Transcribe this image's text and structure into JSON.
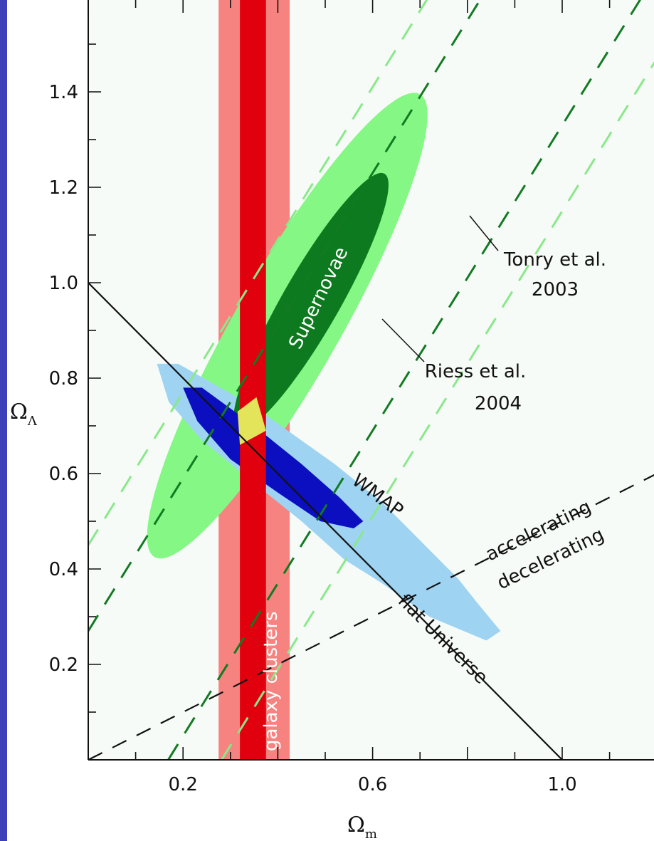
{
  "chart_data": {
    "type": "contour",
    "title": "",
    "xlabel": "Ωm",
    "xlabel_main": "Ω",
    "xlabel_sub": "m",
    "ylabel": "ΩΛ",
    "ylabel_main": "Ω",
    "ylabel_sub": "Λ",
    "xlim": [
      0.0,
      1.2
    ],
    "ylim": [
      0.0,
      1.6
    ],
    "x_ticks": [
      "0.2",
      "0.6",
      "1.0"
    ],
    "y_ticks": [
      "0.2",
      "0.4",
      "0.6",
      "0.8",
      "1.0",
      "1.2",
      "1.4"
    ],
    "colors": {
      "supernovae_outer": "#85f785",
      "supernovae_inner": "#0e7a1f",
      "wmap_outer": "#9ed4f2",
      "wmap_inner": "#0b0fc0",
      "clusters_outer": "#f6837f",
      "clusters_inner": "#e0000e",
      "overlap": "#e4e45a",
      "tonry_dash": "#8ae88a",
      "riess_dash": "#127a22"
    },
    "regions": [
      {
        "name": "Supernovae",
        "label": "Supernovae",
        "type": "ellipse",
        "center": [
          0.42,
          0.91
        ],
        "semi_major": 0.56,
        "semi_minor": 0.11,
        "angle_deg": 60
      },
      {
        "name": "Supernovae-inner",
        "type": "ellipse",
        "center": [
          0.47,
          0.96
        ],
        "semi_major": 0.31,
        "semi_minor": 0.06,
        "angle_deg": 60
      },
      {
        "name": "WMAP",
        "label": "WMAP",
        "type": "band",
        "from": [
          0.16,
          0.81
        ],
        "to": [
          0.86,
          0.26
        ]
      },
      {
        "name": "galaxy clusters",
        "label": "galaxy clusters",
        "type": "vertical-band",
        "outer": [
          0.275,
          0.425
        ],
        "inner": [
          0.32,
          0.375
        ]
      }
    ],
    "lines": [
      {
        "name": "flat Universe",
        "label": "flat Universe",
        "style": "solid",
        "from": [
          0.0,
          1.0
        ],
        "to": [
          1.0,
          0.0
        ]
      },
      {
        "name": "accelerating/decelerating",
        "label_above": "accelerating",
        "label_below": "decelerating",
        "style": "dashed",
        "from": [
          0.0,
          0.0
        ],
        "to": [
          1.2,
          0.6
        ]
      },
      {
        "name": "Tonry et al. 2003",
        "label": [
          "Tonry et al.",
          "2003"
        ],
        "style": "dashed",
        "slope": 1.6,
        "intercepts": [
          0.45,
          -0.45
        ]
      },
      {
        "name": "Riess et al. 2004",
        "label": [
          "Riess et al.",
          "2004"
        ],
        "style": "dashed",
        "slope": 1.6,
        "intercepts": [
          0.27,
          -0.27
        ]
      }
    ],
    "grid": false,
    "legend": "none"
  }
}
